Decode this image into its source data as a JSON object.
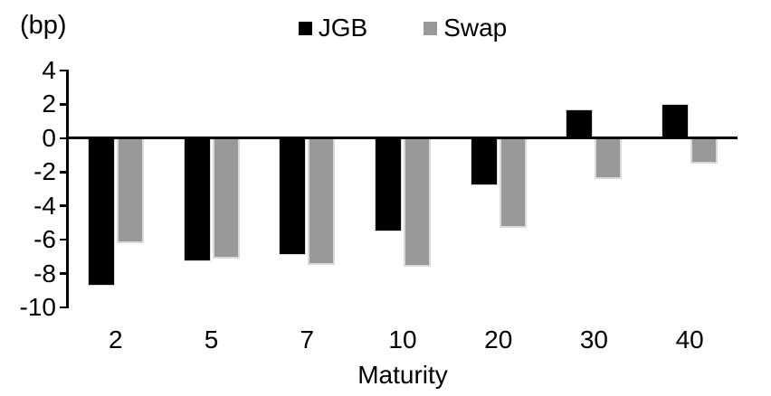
{
  "chart_data": {
    "type": "bar",
    "unit_label": "(bp)",
    "xlabel": "Maturity",
    "categories": [
      "2",
      "5",
      "7",
      "10",
      "20",
      "30",
      "40"
    ],
    "series": [
      {
        "name": "JGB",
        "color": "#000000",
        "values": [
          -8.7,
          -7.3,
          -6.9,
          -5.5,
          -2.8,
          1.7,
          2.0
        ]
      },
      {
        "name": "Swap",
        "color": "#999999",
        "values": [
          -6.2,
          -7.1,
          -7.5,
          -7.6,
          -5.3,
          -2.4,
          -1.5
        ]
      }
    ],
    "ylim": [
      -10,
      4
    ],
    "yticks": [
      4,
      2,
      0,
      -2,
      -4,
      -6,
      -8,
      -10
    ],
    "legend_position": "top-center",
    "grid": false,
    "axis_color": "#000000",
    "background": "#ffffff"
  }
}
